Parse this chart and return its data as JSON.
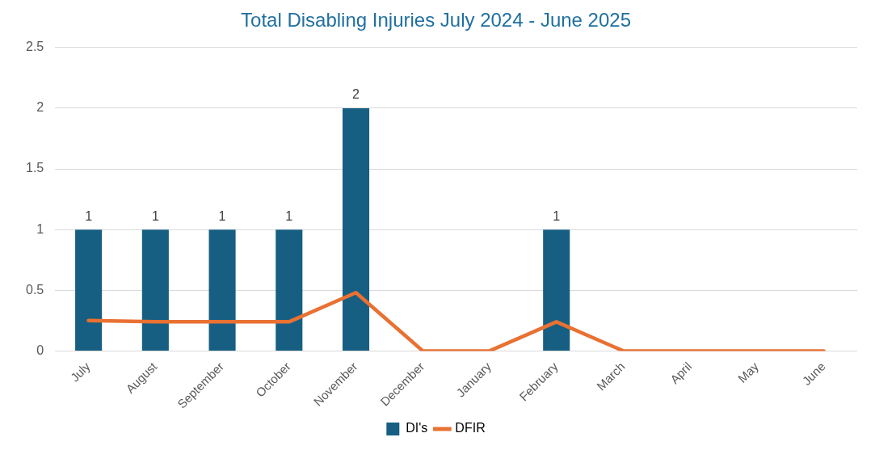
{
  "chart_data": {
    "type": "bar",
    "title": "Total Disabling Injuries July 2024 - June 2025",
    "categories": [
      "July",
      "August",
      "September",
      "October",
      "November",
      "December",
      "January",
      "February",
      "March",
      "April",
      "May",
      "June"
    ],
    "series": [
      {
        "name": "DI's",
        "color": "#175f82",
        "values": [
          1,
          1,
          1,
          1,
          2,
          0,
          0,
          1,
          0,
          0,
          0,
          0
        ],
        "value_labels": [
          "1",
          "1",
          "1",
          "1",
          "2",
          null,
          null,
          "1",
          null,
          null,
          null,
          null
        ]
      },
      {
        "name": "DFIR",
        "type": "line",
        "color": "#e97132",
        "values": [
          0.25,
          0.24,
          0.24,
          0.24,
          0.48,
          0,
          0,
          0.24,
          0,
          0,
          0,
          0
        ]
      }
    ],
    "ylim": [
      0,
      2.5
    ],
    "yticks": [
      0,
      0.5,
      1,
      1.5,
      2,
      2.5
    ],
    "grid": "y",
    "legend": "bottom",
    "marker": "none"
  }
}
